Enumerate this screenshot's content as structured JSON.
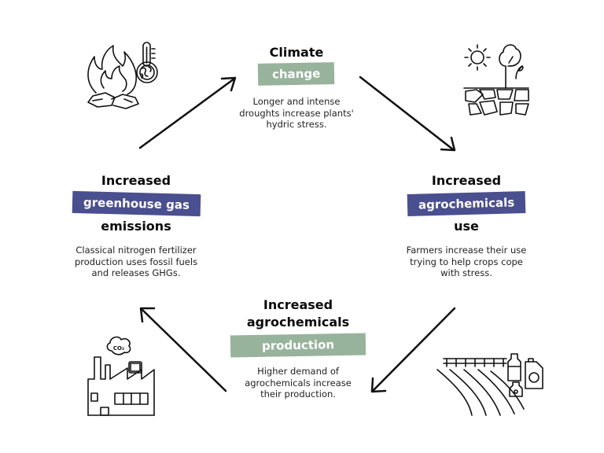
{
  "colors": {
    "green_tag": "#98b39c",
    "blue_tag": "#4a4f8f",
    "ink": "#111111"
  },
  "nodes": {
    "climate": {
      "heading_top": "Climate",
      "tag": "change",
      "tag_color": "green_tag",
      "description": [
        "Longer and intense",
        "droughts increase plants'",
        "hydric stress."
      ],
      "icon": "fire-thermometer-globe-icon"
    },
    "use": {
      "heading_top": "Increased",
      "tag": "agrochemicals",
      "tag_color": "blue_tag",
      "heading_bottom": "use",
      "description": [
        "Farmers increase their use",
        "trying to help crops cope",
        "with stress."
      ],
      "icon": "drought-sun-tree-icon"
    },
    "production": {
      "heading_top": "Increased",
      "heading_top2": "agrochemicals",
      "tag": "production",
      "tag_color": "green_tag",
      "description": [
        "Higher demand of",
        "agrochemicals increase",
        "their production."
      ],
      "icon": "field-sprayer-bottles-icon"
    },
    "emissions": {
      "heading_top": "Increased",
      "tag": "greenhouse gas",
      "tag_color": "blue_tag",
      "heading_bottom": "emissions",
      "description": [
        "Classical nitrogen fertilizer",
        "production uses fossil fuels",
        "and releases GHGs."
      ],
      "icon": "factory-co2-icon",
      "co2_label": "CO₂"
    }
  }
}
